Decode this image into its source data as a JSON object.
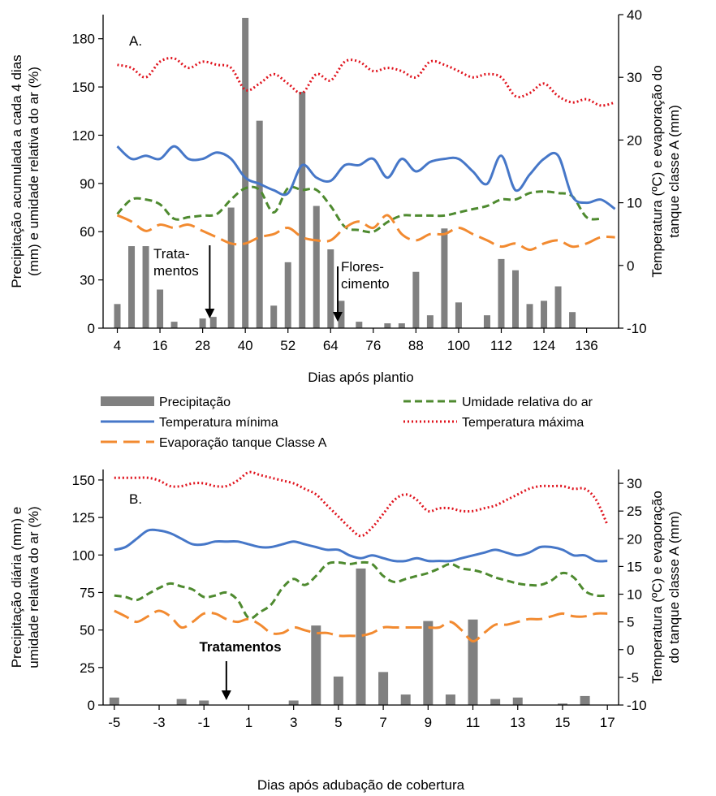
{
  "chart_data": [
    {
      "type": "bar+line",
      "panel_label": "A.",
      "xlabel": "Dias após plantio",
      "ylabel_left_line1": "Precipitação acumulada a cada 4 dias",
      "ylabel_left_line2": "(mm) e umidade relativa do ar (%)",
      "ylabel_right_line1": "Temperatura (ºC) e evaporação do",
      "ylabel_right_line2": "tanque classe A (mm)",
      "xlim": [
        0,
        145
      ],
      "xticks": [
        4,
        16,
        28,
        40,
        52,
        64,
        76,
        88,
        100,
        112,
        124,
        136
      ],
      "ylim_left": [
        0,
        195
      ],
      "yticks_left": [
        0,
        30,
        60,
        90,
        120,
        150,
        180
      ],
      "ylim_right": [
        -10,
        40
      ],
      "yticks_right": [
        -10,
        0,
        10,
        20,
        30,
        40
      ],
      "bar_series": {
        "name": "Precipitação",
        "x": [
          4,
          8,
          12,
          16,
          20,
          28,
          31,
          36,
          40,
          44,
          48,
          52,
          56,
          60,
          64,
          67,
          72,
          80,
          84,
          88,
          92,
          96,
          100,
          108,
          112,
          116,
          120,
          124,
          128,
          132
        ],
        "values": [
          15,
          51,
          51,
          24,
          4,
          6,
          7,
          75,
          193,
          129,
          14,
          41,
          147,
          76,
          49,
          17,
          4,
          3,
          3,
          35,
          8,
          62,
          16,
          8,
          43,
          36,
          15,
          17,
          26,
          10
        ]
      },
      "line_series": [
        {
          "name": "Umidade relativa do ar",
          "axis": "left",
          "x": [
            4,
            8,
            12,
            16,
            20,
            24,
            28,
            32,
            36,
            40,
            44,
            48,
            52,
            56,
            60,
            64,
            68,
            72,
            76,
            80,
            84,
            88,
            92,
            96,
            100,
            104,
            108,
            112,
            116,
            120,
            124,
            128,
            132,
            136,
            140
          ],
          "values": [
            71,
            80,
            80,
            77,
            68,
            69,
            70,
            71,
            80,
            87,
            86,
            72,
            87,
            86,
            86,
            76,
            63,
            61,
            60,
            66,
            70,
            70,
            70,
            70,
            72,
            74,
            76,
            80,
            80,
            84,
            85,
            84,
            82,
            69,
            68
          ]
        },
        {
          "name": "Temperatura mínima",
          "axis": "right",
          "x": [
            4,
            8,
            12,
            16,
            20,
            24,
            28,
            32,
            36,
            40,
            44,
            48,
            52,
            56,
            60,
            64,
            68,
            72,
            76,
            80,
            84,
            88,
            92,
            96,
            100,
            104,
            108,
            112,
            116,
            120,
            124,
            128,
            132,
            136,
            140,
            144
          ],
          "values": [
            19,
            17,
            17.5,
            17,
            19,
            17,
            17,
            18,
            17,
            14,
            13,
            12,
            11.5,
            16,
            14,
            13.5,
            16,
            16,
            17,
            14,
            17,
            15,
            16.5,
            17,
            17,
            15,
            13,
            17.5,
            12,
            14.5,
            17,
            17.5,
            11,
            10,
            10.5,
            9
          ]
        },
        {
          "name": "Temperatura máxima",
          "axis": "right",
          "x": [
            4,
            8,
            12,
            16,
            20,
            24,
            28,
            32,
            36,
            40,
            44,
            48,
            52,
            56,
            60,
            64,
            68,
            72,
            76,
            80,
            84,
            88,
            92,
            96,
            100,
            104,
            108,
            112,
            116,
            120,
            124,
            128,
            132,
            136,
            140,
            144
          ],
          "values": [
            32,
            31.5,
            30,
            32.5,
            33,
            31.5,
            32.5,
            32,
            31.5,
            28,
            29,
            30.5,
            29,
            27.5,
            30.5,
            29.5,
            32.5,
            32.5,
            31,
            31.5,
            31,
            30,
            32.5,
            32,
            31,
            30,
            30.5,
            30,
            27,
            27.5,
            29,
            27,
            26,
            26.5,
            25.5,
            26
          ]
        },
        {
          "name": "Evaporação tanque Classe A",
          "axis": "right",
          "x": [
            4,
            8,
            12,
            16,
            20,
            24,
            28,
            32,
            36,
            40,
            44,
            48,
            52,
            56,
            60,
            64,
            68,
            72,
            76,
            80,
            84,
            88,
            92,
            96,
            100,
            104,
            108,
            112,
            116,
            120,
            124,
            128,
            132,
            136,
            140,
            144
          ],
          "values": [
            8,
            7,
            5.5,
            6.5,
            6,
            6.5,
            5.5,
            4.5,
            3.5,
            3.5,
            4.5,
            5,
            6,
            4.5,
            4,
            4,
            6,
            7,
            6,
            8,
            5,
            4,
            5,
            5,
            6,
            5,
            4,
            3,
            3.5,
            2.5,
            3.5,
            4,
            3,
            3.5,
            4.5,
            4.5
          ]
        }
      ],
      "annotations": [
        {
          "text_lines": [
            "Trata-",
            "mentos"
          ],
          "arrow_x": 30
        },
        {
          "text_lines": [
            "Flores-",
            "cimento"
          ],
          "arrow_x": 66
        }
      ]
    },
    {
      "type": "bar+line",
      "panel_label": "B.",
      "xlabel": "Dias após adubação de cobertura",
      "ylabel_left_line1": "Precipitação diária (mm) e",
      "ylabel_left_line2": "umidade relativa do ar (%)",
      "ylabel_right_line1": "Temperatura (ºC) e evaporação",
      "ylabel_right_line2": "do tanque classe A (mm)",
      "xlim": [
        -5.5,
        17.5
      ],
      "xticks": [
        -5,
        -3,
        -1,
        1,
        3,
        5,
        7,
        9,
        11,
        13,
        15,
        17
      ],
      "ylim_left": [
        0,
        157
      ],
      "yticks_left": [
        0,
        25,
        50,
        75,
        100,
        125,
        150
      ],
      "ylim_right": [
        -10,
        32.5
      ],
      "yticks_right": [
        -10,
        -5,
        0,
        5,
        10,
        15,
        20,
        25,
        30
      ],
      "bar_series": {
        "name": "Precipitação",
        "x": [
          -5,
          -2,
          -1,
          3,
          4,
          5,
          6,
          7,
          8,
          9,
          10,
          11,
          12,
          13,
          15,
          16
        ],
        "values": [
          5,
          4,
          3,
          3,
          53,
          19,
          91,
          22,
          7,
          56,
          7,
          57,
          4,
          5,
          1,
          6
        ]
      },
      "line_series": [
        {
          "name": "Umidade relativa do ar",
          "axis": "left",
          "x": [
            -5,
            -4.5,
            -4,
            -3.5,
            -3,
            -2.5,
            -2,
            -1.5,
            -1,
            -0.5,
            0,
            0.5,
            1,
            1.5,
            2,
            2.5,
            3,
            3.5,
            4,
            4.5,
            5,
            5.5,
            6,
            6.5,
            7,
            7.5,
            8,
            8.5,
            9,
            9.5,
            10,
            10.5,
            11,
            11.5,
            12,
            12.5,
            13,
            13.5,
            14,
            14.5,
            15,
            15.5,
            16,
            16.5,
            17
          ],
          "values": [
            73,
            72,
            70,
            74,
            78,
            81,
            79,
            77,
            72,
            73,
            75,
            70,
            58,
            62,
            67,
            78,
            84,
            80,
            86,
            94,
            95,
            94,
            95,
            94,
            86,
            82,
            84,
            86,
            88,
            91,
            94,
            91,
            90,
            88,
            85,
            83,
            81,
            80,
            80,
            83,
            88,
            85,
            76,
            73,
            73
          ]
        },
        {
          "name": "Temperatura mínima",
          "axis": "right",
          "x": [
            -5,
            -4.5,
            -4,
            -3.5,
            -3,
            -2.5,
            -2,
            -1.5,
            -1,
            -0.5,
            0,
            0.5,
            1,
            1.5,
            2,
            2.5,
            3,
            3.5,
            4,
            4.5,
            5,
            5.5,
            6,
            6.5,
            7,
            7.5,
            8,
            8.5,
            9,
            9.5,
            10,
            10.5,
            11,
            11.5,
            12,
            12.5,
            13,
            13.5,
            14,
            14.5,
            15,
            15.5,
            16,
            16.5,
            17
          ],
          "values": [
            18,
            18.5,
            20,
            21.5,
            21.5,
            21,
            20,
            19,
            19,
            19.5,
            19.5,
            19.5,
            19,
            18.5,
            18.5,
            19,
            19.5,
            19,
            18.5,
            18,
            18,
            17,
            16.5,
            17,
            16.5,
            16,
            16,
            16.5,
            16,
            16,
            16,
            16.5,
            17,
            17.5,
            18,
            17.5,
            17,
            17.5,
            18.5,
            18.5,
            18,
            17,
            17,
            16,
            16
          ]
        },
        {
          "name": "Temperatura máxima",
          "axis": "right",
          "x": [
            -5,
            -4.5,
            -4,
            -3.5,
            -3,
            -2.5,
            -2,
            -1.5,
            -1,
            -0.5,
            0,
            0.5,
            1,
            1.5,
            2,
            2.5,
            3,
            3.5,
            4,
            4.5,
            5,
            5.5,
            6,
            6.5,
            7,
            7.5,
            8,
            8.5,
            9,
            9.5,
            10,
            10.5,
            11,
            11.5,
            12,
            12.5,
            13,
            13.5,
            14,
            14.5,
            15,
            15.5,
            16,
            16.5,
            17
          ],
          "values": [
            31,
            31,
            31,
            31,
            30.5,
            29.5,
            29.5,
            30,
            30,
            29.5,
            29.5,
            30.5,
            32,
            31.5,
            31,
            30.5,
            30,
            29,
            28,
            26,
            24,
            22,
            20.5,
            22,
            24.5,
            27,
            28,
            27,
            25,
            25.5,
            25.5,
            25,
            25,
            25.5,
            26,
            27,
            28,
            29,
            29.5,
            29.5,
            29.5,
            29,
            29,
            27,
            22.5
          ]
        },
        {
          "name": "Evaporação tanque Classe A",
          "axis": "right",
          "x": [
            -5,
            -4.5,
            -4,
            -3.5,
            -3,
            -2.5,
            -2,
            -1.5,
            -1,
            -0.5,
            0,
            0.5,
            1,
            1.5,
            2,
            2.5,
            3,
            3.5,
            4,
            4.5,
            5,
            5.5,
            6,
            6.5,
            7,
            7.5,
            8,
            8.5,
            9,
            9.5,
            10,
            10.5,
            11,
            11.5,
            12,
            12.5,
            13,
            13.5,
            14,
            14.5,
            15,
            15.5,
            16,
            16.5,
            17
          ],
          "values": [
            7,
            6,
            5,
            6,
            7,
            6,
            4,
            5,
            6.5,
            6.5,
            5.5,
            5,
            5.5,
            4.5,
            3,
            3,
            4,
            3.5,
            3,
            3,
            2.5,
            2.5,
            2.5,
            3,
            4,
            4,
            4,
            4,
            4,
            4,
            5,
            3.5,
            1.5,
            3,
            4.5,
            4.5,
            5,
            5.5,
            5.5,
            6,
            6.5,
            6,
            6,
            6.5,
            6.5
          ]
        }
      ],
      "annotations": [
        {
          "text_lines": [
            "Tratamentos"
          ],
          "arrow_x": 0
        }
      ]
    }
  ],
  "legend": {
    "items": [
      {
        "label": "Precipitação",
        "style": "bar"
      },
      {
        "label": "Umidade relativa do ar",
        "style": "dashed-green"
      },
      {
        "label": "Temperatura mínima",
        "style": "solid-blue"
      },
      {
        "label": "Temperatura máxima",
        "style": "dotted-red"
      },
      {
        "label": "Evaporação tanque Classe A",
        "style": "longdash-orange"
      }
    ]
  },
  "colors": {
    "bars": "#808080",
    "humidity": "#4e8a2f",
    "tmin": "#4677c8",
    "tmax": "#e0141e",
    "evap": "#f28a30",
    "axis": "#000000"
  }
}
